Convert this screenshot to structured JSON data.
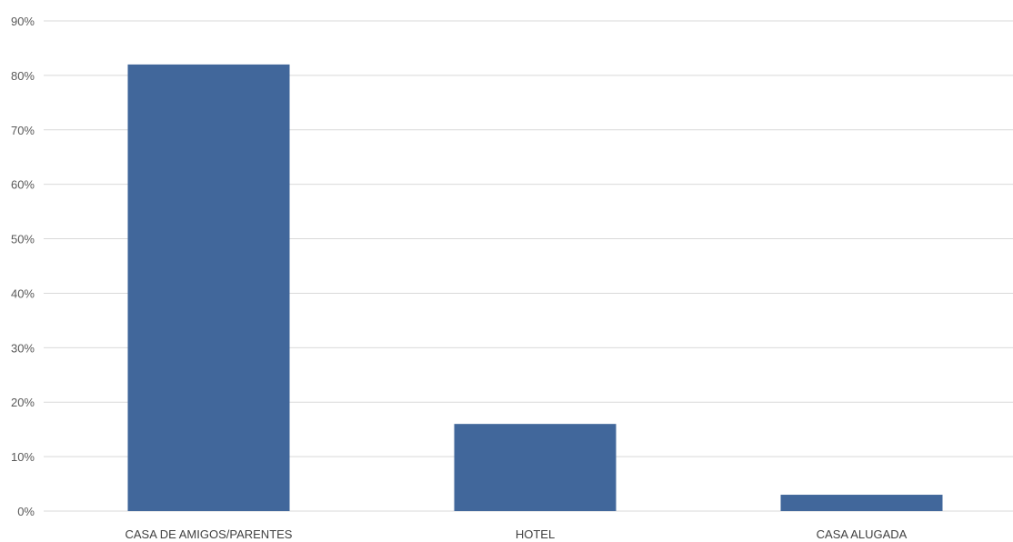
{
  "chart_data": {
    "type": "bar",
    "title": "",
    "xlabel": "",
    "ylabel": "",
    "categories": [
      "CASA DE AMIGOS/PARENTES",
      "HOTEL",
      "CASA ALUGADA"
    ],
    "values": [
      82,
      16,
      3
    ],
    "value_unit": "%",
    "ylim": [
      0,
      90
    ],
    "yticks": [
      "0%",
      "10%",
      "20%",
      "30%",
      "40%",
      "50%",
      "60%",
      "70%",
      "80%",
      "90%"
    ],
    "grid": true,
    "legend": "none",
    "colors": {
      "bar": "#41679b",
      "grid": "#d9d9d9"
    }
  }
}
